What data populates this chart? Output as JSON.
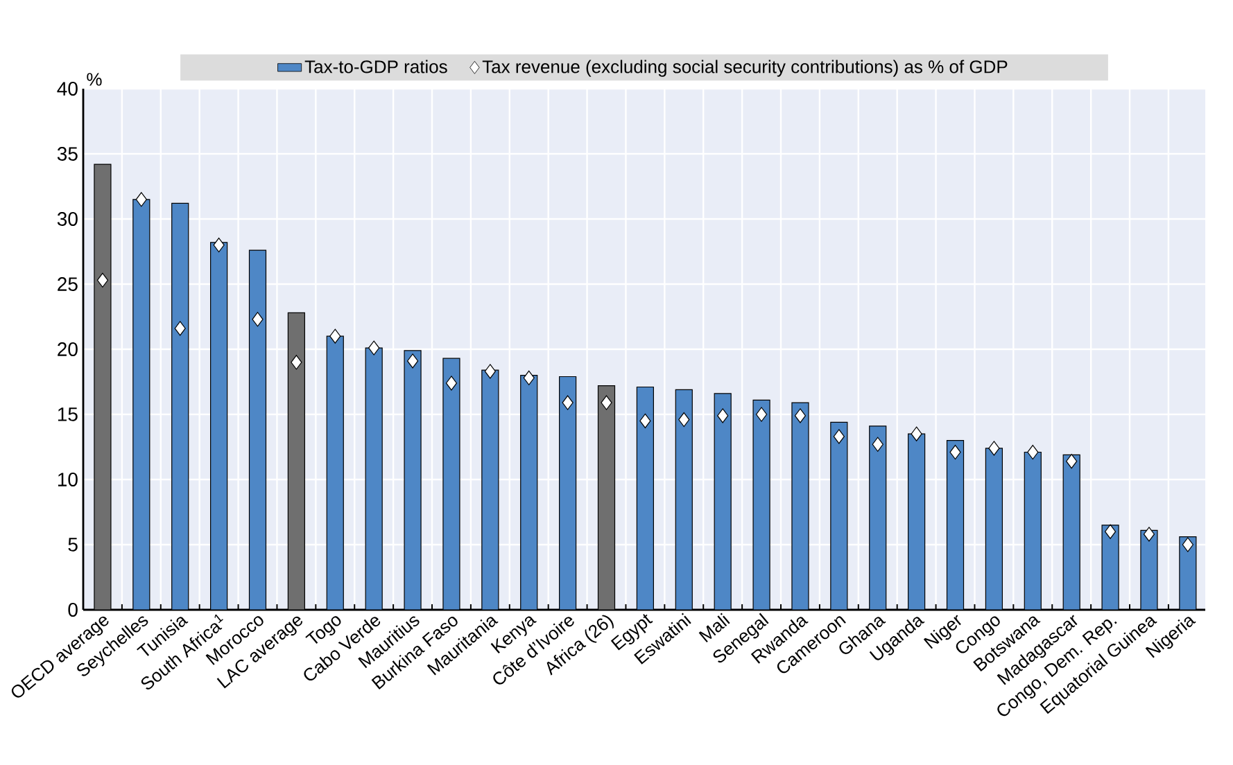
{
  "chart_data": {
    "type": "bar",
    "ylabel": "%",
    "legend": "top",
    "grid": true,
    "ylim": [
      0,
      40
    ],
    "yticks": [
      0,
      5,
      10,
      15,
      20,
      25,
      30,
      35,
      40
    ],
    "categories": [
      "OECD average",
      "Seychelles",
      "Tunisia",
      "South Africa$^{1}$",
      "Morocco",
      "LAC average",
      "Togo",
      "Cabo Verde",
      "Mauritius",
      "Burkina Faso",
      "Mauritania",
      "Kenya",
      "Côte d’Ivoire",
      "Africa (26)",
      "Egypt",
      "Eswatini",
      "Mali",
      "Senegal",
      "Rwanda",
      "Cameroon",
      "Ghana",
      "Uganda",
      "Niger",
      "Congo",
      "Botswana",
      "Madagascar",
      "Congo, Dem. Rep.",
      "Equatorial Guinea",
      "Nigeria"
    ],
    "series": [
      {
        "name": "Tax-to-GDP ratios",
        "color": "#4e87c6",
        "colors": [
          "#6f6f6f",
          "#4e87c6",
          "#4e87c6",
          "#4e87c6",
          "#4e87c6",
          "#6f6f6f",
          "#4e87c6",
          "#4e87c6",
          "#4e87c6",
          "#4e87c6",
          "#4e87c6",
          "#4e87c6",
          "#4e87c6",
          "#6f6f6f",
          "#4e87c6",
          "#4e87c6",
          "#4e87c6",
          "#4e87c6",
          "#4e87c6",
          "#4e87c6",
          "#4e87c6",
          "#4e87c6",
          "#4e87c6",
          "#4e87c6",
          "#4e87c6",
          "#4e87c6",
          "#4e87c6",
          "#4e87c6",
          "#4e87c6"
        ],
        "values": [
          34.2,
          31.5,
          31.2,
          28.2,
          27.6,
          22.8,
          21.0,
          20.1,
          19.9,
          19.3,
          18.4,
          18.0,
          17.9,
          17.2,
          17.1,
          16.9,
          16.6,
          16.1,
          15.9,
          14.4,
          14.1,
          13.5,
          13.0,
          12.4,
          12.1,
          11.9,
          6.5,
          6.1,
          5.6
        ]
      },
      {
        "name": "Tax revenue (excluding social security contributions) as % of GDP",
        "type": "scatter",
        "marker": "diamond",
        "color": "#ffffff",
        "x": [
          "OECD average",
          "Seychelles",
          "Tunisia",
          "South Africa$^{1}$",
          "Morocco",
          "LAC average",
          "Togo",
          "Cabo Verde",
          "Mauritius",
          "Burkina Faso",
          "Mauritania",
          "Kenya",
          "Côte d’Ivoire",
          "Africa (26)",
          "Egypt",
          "Eswatini",
          "Mali",
          "Senegal",
          "Rwanda",
          "Cameroon",
          "Ghana",
          "Uganda",
          "Niger",
          "Congo",
          "Botswana",
          "Madagascar",
          "Congo, Dem. Rep.",
          "Equatorial Guinea",
          "Nigeria"
        ],
        "values": [
          25.3,
          31.5,
          21.6,
          28.0,
          22.3,
          19.0,
          21.0,
          20.1,
          19.1,
          17.4,
          18.3,
          17.8,
          15.9,
          15.9,
          14.5,
          14.6,
          14.9,
          15.0,
          14.9,
          13.3,
          12.7,
          13.5,
          12.1,
          12.4,
          12.1,
          11.4,
          6.0,
          5.8,
          5.0
        ]
      }
    ]
  }
}
